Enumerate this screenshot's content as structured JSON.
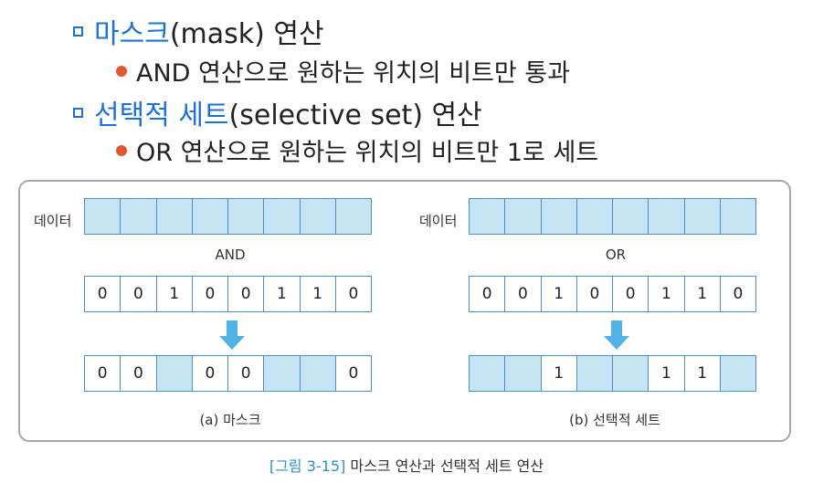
{
  "bullets": {
    "mask_title_highlight": "마스크",
    "mask_title_rest": "(mask) 연산",
    "mask_desc": "AND 연산으로 원하는 위치의 비트만 통과",
    "set_title_highlight": "선택적 세트",
    "set_title_rest": "(selective set) 연산",
    "set_desc": "OR 연산으로 원하는 위치의 비트만 1로 세트"
  },
  "diagram": {
    "left": {
      "data_label": "데이터",
      "operator": "AND",
      "mask_bits": [
        "0",
        "0",
        "1",
        "0",
        "0",
        "1",
        "1",
        "0"
      ],
      "result_bits": [
        "0",
        "0",
        "",
        "0",
        "0",
        "",
        "",
        "0"
      ],
      "result_filled": [
        false,
        false,
        true,
        false,
        false,
        true,
        true,
        false
      ],
      "caption": "(a) 마스크"
    },
    "right": {
      "data_label": "데이터",
      "operator": "OR",
      "mask_bits": [
        "0",
        "0",
        "1",
        "0",
        "0",
        "1",
        "1",
        "0"
      ],
      "result_bits": [
        "",
        "",
        "1",
        "",
        "",
        "1",
        "1",
        ""
      ],
      "result_filled": [
        true,
        true,
        false,
        true,
        true,
        false,
        false,
        true
      ],
      "caption": "(b) 선택적 세트"
    }
  },
  "figure": {
    "number": "[그림 3-15]",
    "title": "마스크 연산과 선택적 세트 연산"
  },
  "colors": {
    "accent": "#1e73d2",
    "bullet_dot": "#e4572e",
    "cell_fill": "#c5e5f5",
    "cell_border": "#4d8fc4",
    "arrow": "#4fb3e6",
    "figure_number": "#2e8fc9"
  }
}
